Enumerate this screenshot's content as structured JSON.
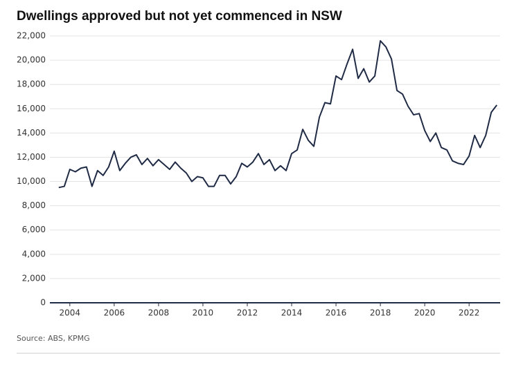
{
  "chart_data": {
    "type": "line",
    "title": "Dwellings approved but not yet commenced in NSW",
    "source": "Source: ABS, KPMG",
    "x": [
      2003.5,
      2003.75,
      2004,
      2004.25,
      2004.5,
      2004.75,
      2005,
      2005.25,
      2005.5,
      2005.75,
      2006,
      2006.25,
      2006.5,
      2006.75,
      2007,
      2007.25,
      2007.5,
      2007.75,
      2008,
      2008.25,
      2008.5,
      2008.75,
      2009,
      2009.25,
      2009.5,
      2009.75,
      2010,
      2010.25,
      2010.5,
      2010.75,
      2011,
      2011.25,
      2011.5,
      2011.75,
      2012,
      2012.25,
      2012.5,
      2012.75,
      2013,
      2013.25,
      2013.5,
      2013.75,
      2014,
      2014.25,
      2014.5,
      2014.75,
      2015,
      2015.25,
      2015.5,
      2015.75,
      2016,
      2016.25,
      2016.5,
      2016.75,
      2017,
      2017.25,
      2017.5,
      2017.75,
      2018,
      2018.25,
      2018.5,
      2018.75,
      2019,
      2019.25,
      2019.5,
      2019.75,
      2020,
      2020.25,
      2020.5,
      2020.75,
      2021,
      2021.25,
      2021.5,
      2021.75,
      2022,
      2022.25,
      2022.5,
      2022.75,
      2023,
      2023.25
    ],
    "series": [
      {
        "name": "Dwellings approved but not yet commenced",
        "color": "#1f2a44",
        "values": [
          9500,
          9600,
          11000,
          10800,
          11100,
          11200,
          9600,
          10900,
          10500,
          11200,
          12500,
          10900,
          11500,
          12000,
          12200,
          11400,
          11900,
          11300,
          11800,
          11400,
          11000,
          11600,
          11100,
          10700,
          10000,
          10400,
          10300,
          9600,
          9600,
          10500,
          10500,
          9800,
          10400,
          11500,
          11200,
          11600,
          12300,
          11400,
          11800,
          10900,
          11300,
          10900,
          12300,
          12600,
          14300,
          13400,
          12900,
          15300,
          16500,
          16400,
          18700,
          18400,
          19700,
          20900,
          18500,
          19300,
          18200,
          18700,
          21600,
          21100,
          20100,
          17500,
          17200,
          16200,
          15500,
          15600,
          14200,
          13300,
          14000,
          12800,
          12600,
          11700,
          11500,
          11400,
          12100,
          13800,
          12800,
          13800,
          15700,
          16300
        ]
      }
    ],
    "xlim": [
      2003.1,
      2023.4
    ],
    "xticks": [
      2004,
      2006,
      2008,
      2010,
      2012,
      2014,
      2016,
      2018,
      2020,
      2022
    ],
    "ylim": [
      0,
      22000
    ],
    "yticks": [
      0,
      {
        "value": 2000,
        "label": "2,000"
      },
      {
        "value": 4000,
        "label": "4,000"
      },
      {
        "value": 6000,
        "label": "6,000"
      },
      {
        "value": 8000,
        "label": "8,000"
      },
      {
        "value": 10000,
        "label": "10,000"
      },
      {
        "value": 12000,
        "label": "12,000"
      },
      {
        "value": 14000,
        "label": "14,000"
      },
      {
        "value": 16000,
        "label": "16,000"
      },
      {
        "value": 18000,
        "label": "18,000"
      },
      {
        "value": 20000,
        "label": "20,000"
      },
      {
        "value": 22000,
        "label": "22,000"
      }
    ],
    "grid": true
  }
}
